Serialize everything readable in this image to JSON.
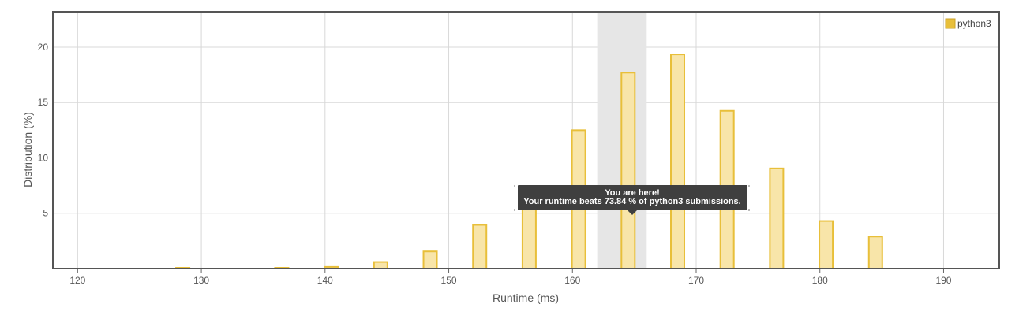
{
  "chart_data": {
    "type": "bar",
    "x_label": "Runtime (ms)",
    "y_label": "Distribution (%)",
    "x_ticks": [
      120,
      130,
      140,
      150,
      160,
      170,
      180,
      190
    ],
    "y_ticks": [
      5,
      10,
      15,
      20
    ],
    "x_range": [
      118,
      194.5
    ],
    "y_range": [
      0,
      23.2
    ],
    "grid": true,
    "legend": {
      "position": "top-right",
      "series_name": "python3"
    },
    "series": [
      {
        "name": "python3",
        "color": "#e8bf3a",
        "fill": "#f8e5a9",
        "x": [
          128.5,
          136.5,
          140.5,
          144.5,
          148.5,
          152.5,
          156.5,
          160.5,
          164.5,
          168.5,
          172.5,
          176.5,
          180.5,
          184.5
        ],
        "values": [
          0.03,
          0.02,
          0.15,
          0.6,
          1.55,
          3.95,
          7.4,
          12.5,
          17.7,
          19.35,
          14.25,
          9.05,
          4.3,
          2.9
        ]
      }
    ],
    "highlight": {
      "range": [
        162,
        166
      ],
      "color": "#e6e6e6"
    },
    "tooltip": {
      "line1": "You are here!",
      "line2": "Your runtime beats 73.84 % of python3 submissions."
    }
  }
}
